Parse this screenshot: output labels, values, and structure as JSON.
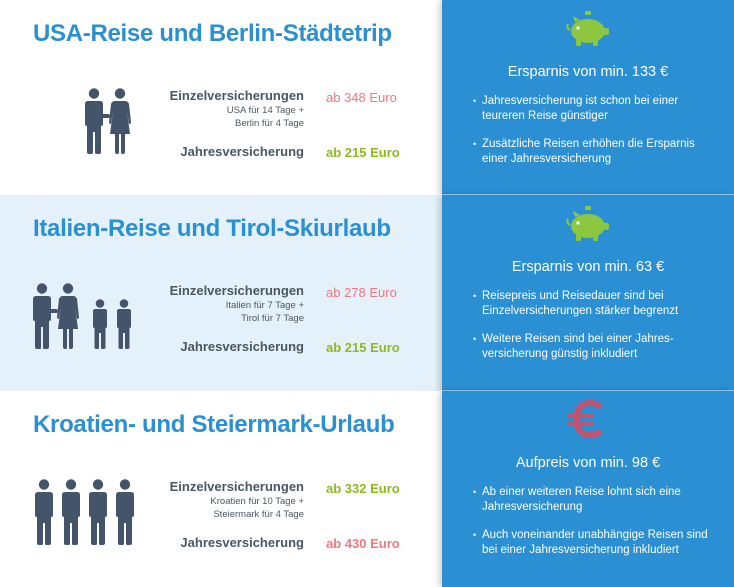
{
  "sections": [
    {
      "title": "USA-Reise und Berlin-Städtetrip",
      "people_icon": "two-adults-icon",
      "single_label": "Einzelversicherungen",
      "single_detail_1": "USA für 14 Tage +",
      "single_detail_2": "Berlin für 4 Tage",
      "single_price": "ab 348 Euro",
      "annual_label": "Jahresversicherung",
      "annual_price": "ab 215 Euro",
      "result_icon": "piggy-bank-icon",
      "result_headline": "Ersparnis von min. 133 €",
      "bullets": [
        "Jahresversicherung ist schon bei einer teureren Reise günstiger",
        "Zusätzliche Reisen erhöhen die Ersparnis einer Jahresversicherung"
      ]
    },
    {
      "title": "Italien-Reise und Tirol-Skiurlaub",
      "people_icon": "family-icon",
      "single_label": "Einzelversicherungen",
      "single_detail_1": "Italien für 7 Tage +",
      "single_detail_2": "Tirol für 7 Tage",
      "single_price": "ab 278 Euro",
      "annual_label": "Jahresversicherung",
      "annual_price": "ab 215 Euro",
      "result_icon": "piggy-bank-icon",
      "result_headline": "Ersparnis von min. 63 €",
      "bullets": [
        "Reisepreis und Reisedauer sind bei Einzelversicherungen stärker begrenzt",
        "Weitere Reisen sind bei einer Jahres-versicherung günstig inkludiert"
      ]
    },
    {
      "title": "Kroatien- und Steiermark-Urlaub",
      "people_icon": "four-men-icon",
      "single_label": "Einzelversicherungen",
      "single_detail_1": "Kroatien für 10 Tage +",
      "single_detail_2": "Steiermark für 4 Tage",
      "single_price": "ab 332 Euro",
      "annual_label": "Jahresversicherung",
      "annual_price": "ab 430 Euro",
      "result_icon": "euro-icon",
      "result_headline": "Aufpreis von min. 98 €",
      "bullets": [
        "Ab einer weiteren Reise lohnt sich eine Jahresversicherung",
        "Auch voneinander unabhängige Reisen sind bei einer Jahresversicherung inkludiert"
      ]
    }
  ],
  "colors": {
    "title_blue": "#2b8fd3",
    "panel_blue": "#2b8fd3",
    "row_tint": "#e5f1fa",
    "price_pink": "#f0787f",
    "price_green": "#8dba1f",
    "text_gray": "#4a5763",
    "icon_gray": "#44546a"
  }
}
